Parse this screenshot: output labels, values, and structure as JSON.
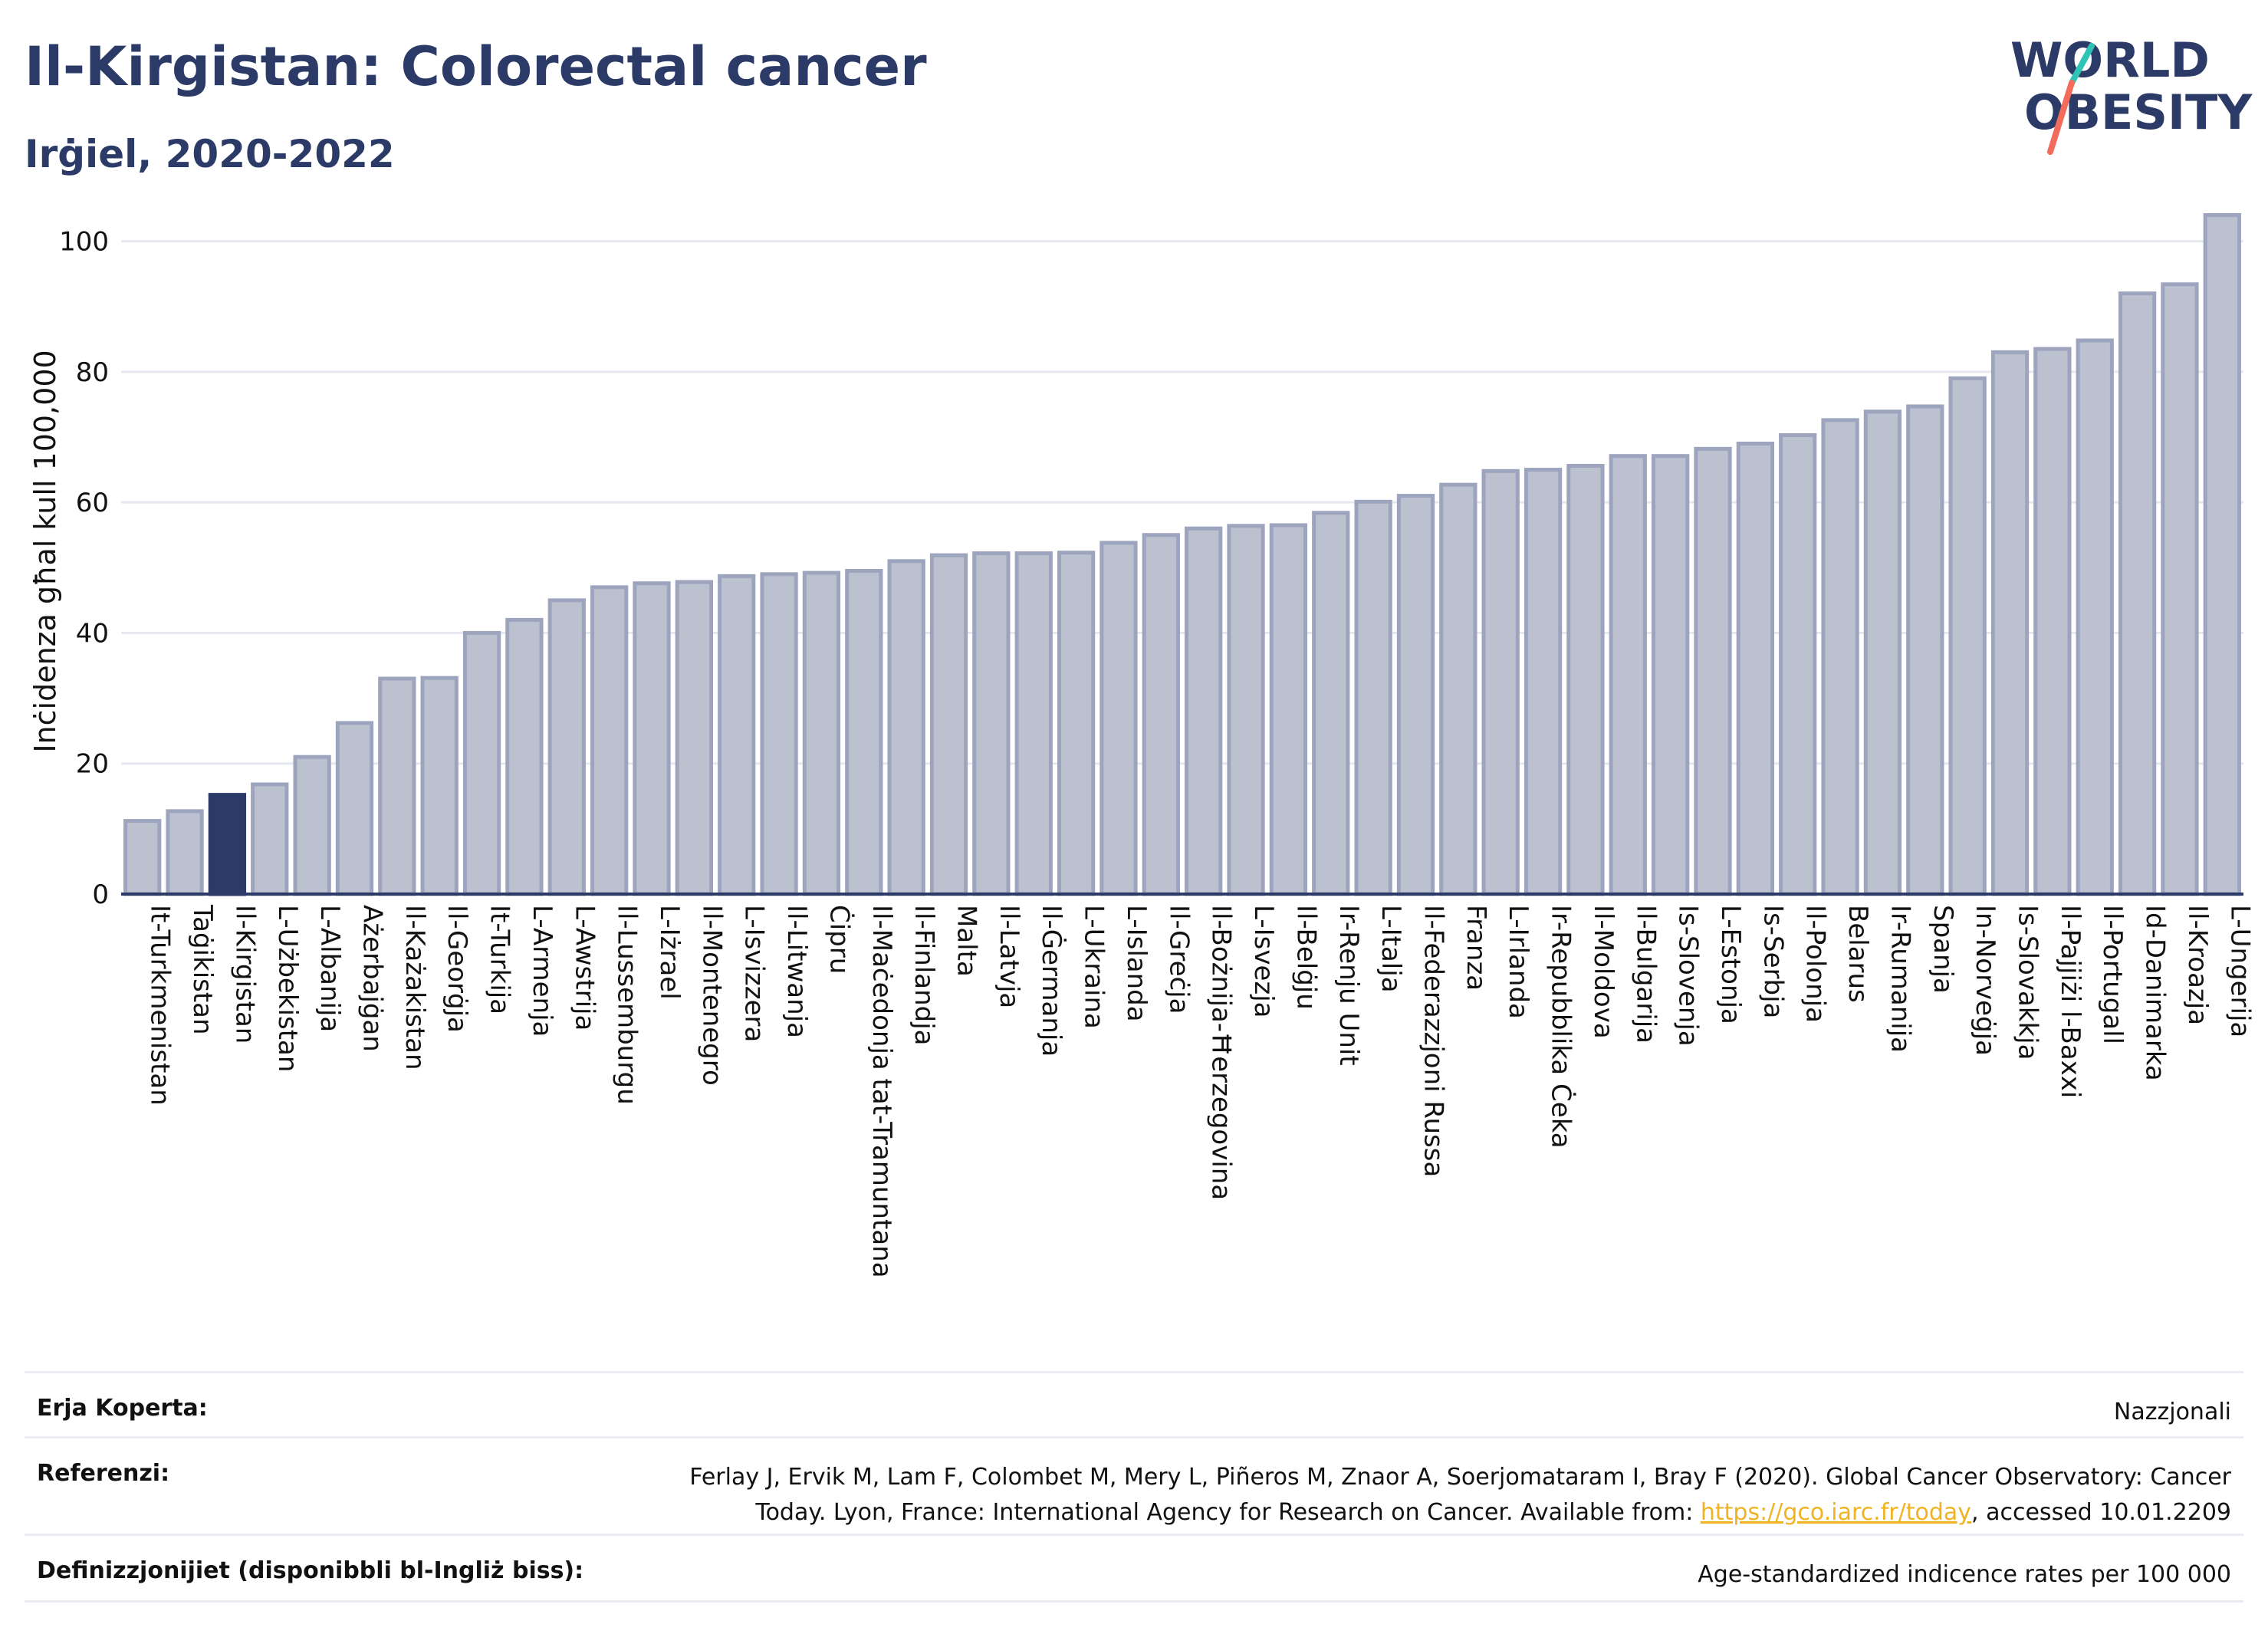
{
  "header": {
    "title": "Il-Kirgistan: Colorectal cancer",
    "subtitle": "Irġiel, 2020-2022"
  },
  "logo": {
    "line1": "WORLD",
    "line2": "OBESITY",
    "colors": {
      "text": "#2b3a67",
      "slash_top": "#2ec4b6",
      "slash_bottom": "#f26b5b"
    }
  },
  "colors": {
    "bar": "#bcc1d0",
    "bar_stroke": "#9da4bd",
    "highlight": "#2b3a67",
    "grid": "#e6e8ef",
    "axis": "#2b3a67"
  },
  "chart_data": {
    "type": "bar",
    "ylabel": "Inċidenza għal kull 100,000",
    "ylim": [
      0,
      105
    ],
    "yticks": [
      0,
      20,
      40,
      60,
      80,
      100
    ],
    "grid": true,
    "highlight_category": "Il-Kirgistan",
    "categories": [
      "It-Turkmenistan",
      "Taġikistan",
      "Il-Kirgistan",
      "L-Użbekistan",
      "L-Albanija",
      "Ażerbajġan",
      "Il-Każakistan",
      "Il-Georġja",
      "It-Turkija",
      "L-Armenja",
      "L-Awstrija",
      "Il-Lussemburgu",
      "L-Iżrael",
      "Il-Montenegro",
      "L-Isvizzera",
      "Il-Litwanja",
      "Ċipru",
      "Il-Maċedonja tat-Tramuntana",
      "Il-Finlandja",
      "Malta",
      "Il-Latvja",
      "Il-Ġermanja",
      "L-Ukraina",
      "L-Islanda",
      "Il-Greċja",
      "Il-Bożnija-Ħerzegovina",
      "L-Isvezja",
      "Il-Belġju",
      "Ir-Renju Unit",
      "L-Italja",
      "Il-Federazzjoni Russa",
      "Franza",
      "L-Irlanda",
      "Ir-Repubblika Ċeka",
      "Il-Moldova",
      "Il-Bulgarija",
      "Is-Slovenja",
      "L-Estonja",
      "Is-Serbja",
      "Il-Polonja",
      "Belarus",
      "Ir-Rumanija",
      "Spanja",
      "In-Norveġja",
      "Is-Slovakkja",
      "Il-Pajjiżi l-Baxxi",
      "Il-Portugall",
      "Id-Danimarka",
      "Il-Kroazja",
      "L-Ungerija"
    ],
    "values": [
      11.2,
      12.7,
      15.2,
      16.8,
      21.0,
      26.2,
      33.0,
      33.1,
      40.0,
      42.0,
      45.0,
      47.0,
      47.6,
      47.8,
      48.7,
      49.0,
      49.2,
      49.5,
      51.0,
      51.9,
      52.2,
      52.2,
      52.3,
      53.8,
      55.0,
      56.0,
      56.4,
      56.5,
      58.4,
      60.1,
      61.0,
      62.7,
      64.8,
      65.0,
      65.6,
      67.1,
      67.1,
      68.2,
      69.0,
      70.3,
      72.6,
      73.9,
      74.7,
      79.0,
      83.0,
      83.5,
      84.8,
      92.0,
      93.4,
      104.0
    ]
  },
  "meta": [
    {
      "label": "Erja Koperta:",
      "value": "Nazzjonali"
    },
    {
      "label": "Referenzi:",
      "value_line1": "Ferlay J, Ervik M, Lam F, Colombet M, Mery L, Piñeros M, Znaor A, Soerjomataram I, Bray F (2020). Global Cancer Observatory: Cancer",
      "value_line2_pre": "Today. Lyon, France: International Agency for Research on Cancer. Available from: ",
      "link": "https://gco.iarc.fr/today",
      "value_line2_post": ", accessed 10.01.2209"
    },
    {
      "label": "Definizzjonijiet (disponibbli bl-Ingliż biss):",
      "value": "Age-standardized indicence rates per 100 000"
    }
  ]
}
